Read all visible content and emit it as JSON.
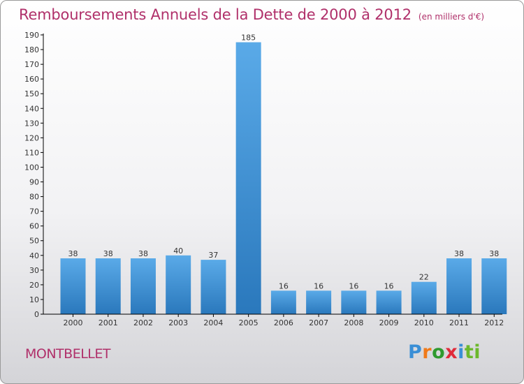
{
  "header": {
    "title": "Remboursements Annuels de la Dette de 2000 à 2012",
    "unit": "(en milliers d'€)"
  },
  "footer": {
    "city": "MONTBELLET",
    "logo_parts": [
      "P",
      "r",
      "o",
      "x",
      "i",
      "ti"
    ]
  },
  "colors": {
    "title": "#b0306a",
    "bar_top": "#5aaae8",
    "bar_bottom": "#2a78bc",
    "axis": "#000000",
    "grid": "#cfcfcf"
  },
  "chart_data": {
    "type": "bar",
    "title": "Remboursements Annuels de la Dette de 2000 à 2012",
    "categories": [
      "2000",
      "2001",
      "2002",
      "2003",
      "2004",
      "2005",
      "2006",
      "2007",
      "2008",
      "2009",
      "2010",
      "2011",
      "2012"
    ],
    "values": [
      38,
      38,
      38,
      40,
      37,
      185,
      16,
      16,
      16,
      16,
      22,
      38,
      38
    ],
    "ylim": [
      0,
      190
    ],
    "yticks": [
      0,
      10,
      20,
      30,
      40,
      50,
      60,
      70,
      80,
      90,
      100,
      110,
      120,
      130,
      140,
      150,
      160,
      170,
      180,
      190
    ],
    "grid": false,
    "legend": "none"
  }
}
